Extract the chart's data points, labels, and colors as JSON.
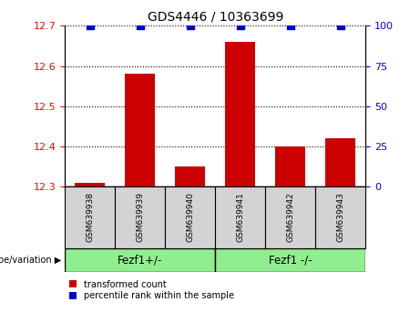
{
  "title": "GDS4446 / 10363699",
  "samples": [
    "GSM639938",
    "GSM639939",
    "GSM639940",
    "GSM639941",
    "GSM639942",
    "GSM639943"
  ],
  "red_values": [
    12.31,
    12.58,
    12.35,
    12.66,
    12.4,
    12.42
  ],
  "blue_values": [
    100,
    100,
    100,
    100,
    100,
    100
  ],
  "ylim_left": [
    12.3,
    12.7
  ],
  "ylim_right": [
    0,
    100
  ],
  "yticks_left": [
    12.3,
    12.4,
    12.5,
    12.6,
    12.7
  ],
  "yticks_right": [
    0,
    25,
    50,
    75,
    100
  ],
  "bar_color": "#cc0000",
  "dot_color": "#0000cc",
  "group1_label": "Fezf1+/-",
  "group2_label": "Fezf1 -/-",
  "xlabel_label": "genotype/variation",
  "legend_red": "transformed count",
  "legend_blue": "percentile rank within the sample",
  "group_bg_color": "#90ee90",
  "sample_bg_color": "#d3d3d3",
  "bar_width": 0.6,
  "baseline": 12.3,
  "dot_size": 30,
  "dot_marker": "s"
}
